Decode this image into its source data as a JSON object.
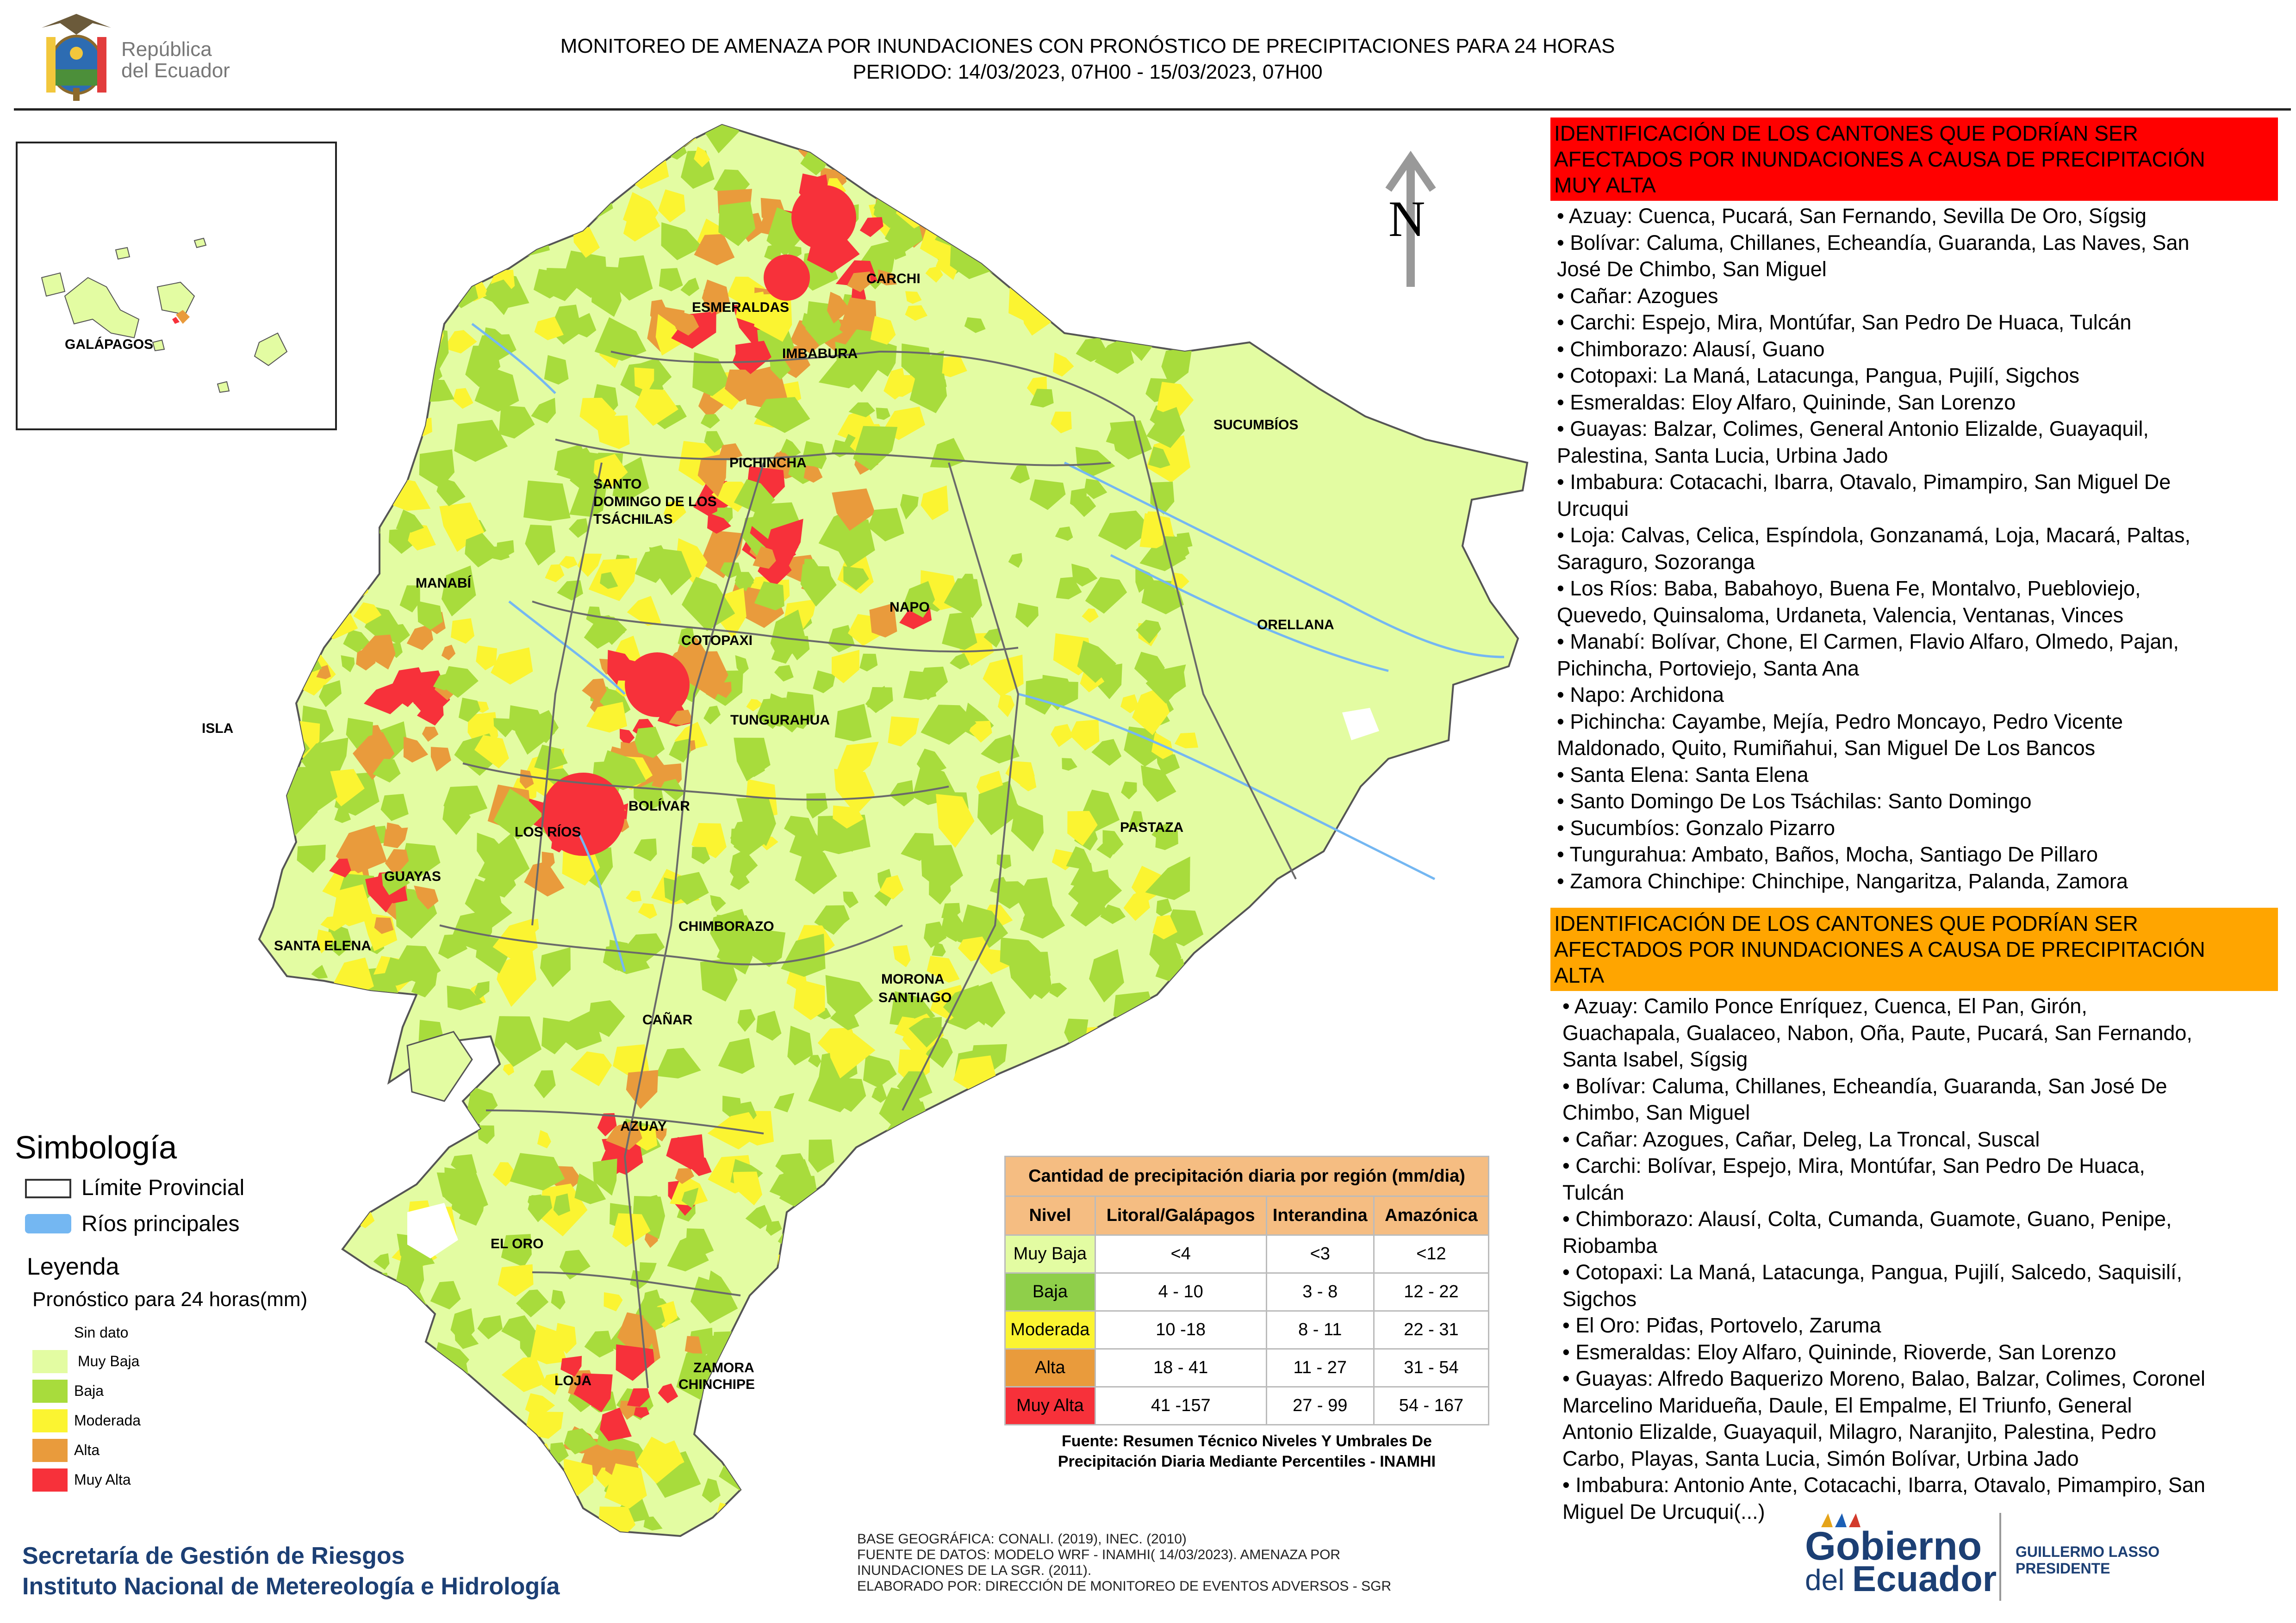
{
  "header": {
    "title_line1": "MONITOREO DE AMENAZA POR INUNDACIONES  CON PRONÓSTICO DE  PRECIPITACIONES PARA 24 HORAS",
    "title_line2": "PERIODO: 14/03/2023, 07H00 - 15/03/2023, 07H00",
    "logo_line1": "República",
    "logo_line2": "del Ecuador"
  },
  "map": {
    "north_label": "N",
    "inset_label": "GALÁPAGOS",
    "provinces": [
      "CARCHI",
      "ESMERALDAS",
      "IMBABURA",
      "SUCUMBÍOS",
      "PICHINCHA",
      "SANTO",
      "DOMINGO DE LOS",
      "TSÁCHILAS",
      "MANABÍ",
      "NAPO",
      "ORELLANA",
      "COTOPAXI",
      "ISLA",
      "TUNGURAHUA",
      "BOLÍVAR",
      "LOS RÍOS",
      "PASTAZA",
      "GUAYAS",
      "SANTA ELENA",
      "CHIMBORAZO",
      "MORONA",
      "SANTIAGO",
      "CAÑAR",
      "AZUAY",
      "EL ORO",
      "ZAMORA",
      "CHINCHIPE",
      "LOJA"
    ]
  },
  "colors": {
    "muy_baja": "#e3fca2",
    "baja": "#a8dc3c",
    "moderada": "#fbf431",
    "alta": "#e99b3c",
    "muy_alta": "#f7313a",
    "header_muy_alta": "#ff0000",
    "header_alta": "#ffa500",
    "rivers": "#74b7f2",
    "table_header": "#f5bd82"
  },
  "legend": {
    "simbologia": "Simbología",
    "limite": "Límite Provincial",
    "rios": "Ríos principales",
    "leyenda": "Leyenda",
    "pronostico": "Pronóstico para 24 horas(mm)",
    "items": [
      "Sin dato",
      "Muy Baja",
      "Baja",
      "Moderada",
      "Alta",
      "Muy Alta"
    ]
  },
  "table": {
    "title": "Cantidad de precipitación diaria por región (mm/dia)",
    "headers": [
      "Nivel",
      "Litoral/Galápagos",
      "Interandina",
      "Amazónica"
    ],
    "rows": [
      [
        "Muy Baja",
        "<4",
        "<3",
        "<12"
      ],
      [
        "Baja",
        "4 - 10",
        "3 - 8",
        "12 - 22"
      ],
      [
        "Moderada",
        "10 -18",
        "8 - 11",
        "22 - 31"
      ],
      [
        "Alta",
        "18 - 41",
        "11 - 27",
        "31 - 54"
      ],
      [
        "Muy Alta",
        "41 -157",
        "27 - 99",
        "54 - 167"
      ]
    ],
    "source_line1": "Fuente: Resumen Técnico Niveles Y Umbrales De",
    "source_line2": "Precipitación Diaria Mediante Percentiles - INAMHI"
  },
  "muy_alta": {
    "header": [
      "IDENTIFICACIÓN DE LOS CANTONES QUE PODRÍAN SER",
      "AFECTADOS POR INUNDACIONES  A CAUSA DE PRECIPITACIÓN",
      "MUY ALTA"
    ],
    "lines": [
      "• Azuay: Cuenca, Pucará, San Fernando, Sevilla De Oro, Sígsig",
      "• Bolívar: Caluma, Chillanes, Echeandía, Guaranda, Las Naves, San",
      "José De Chimbo, San Miguel",
      "• Cañar: Azogues",
      "• Carchi: Espejo, Mira, Montúfar, San Pedro De Huaca, Tulcán",
      "• Chimborazo: Alausí, Guano",
      "• Cotopaxi: La Maná, Latacunga, Pangua, Pujilí, Sigchos",
      "• Esmeraldas: Eloy Alfaro, Quininde, San Lorenzo",
      "• Guayas: Balzar, Colimes, General Antonio Elizalde, Guayaquil,",
      "Palestina, Santa Lucia, Urbina Jado",
      "• Imbabura: Cotacachi, Ibarra, Otavalo, Pimampiro, San Miguel De",
      "Urcuqui",
      "• Loja: Calvas, Celica, Espíndola, Gonzanamá, Loja, Macará, Paltas,",
      "Saraguro, Sozoranga",
      "• Los Ríos: Baba, Babahoyo, Buena Fe, Montalvo, Puebloviejo,",
      "Quevedo, Quinsaloma, Urdaneta, Valencia, Ventanas, Vinces",
      "• Manabí: Bolívar, Chone, El Carmen, Flavio Alfaro, Olmedo, Pajan,",
      "Pichincha, Portoviejo, Santa Ana",
      "• Napo: Archidona",
      "• Pichincha: Cayambe, Mejía, Pedro Moncayo, Pedro Vicente",
      "Maldonado, Quito, Rumiñahui, San Miguel De Los Bancos",
      "• Santa Elena: Santa Elena",
      "• Santo Domingo De Los Tsáchilas: Santo Domingo",
      "• Sucumbíos: Gonzalo Pizarro",
      "• Tungurahua: Ambato, Baños, Mocha, Santiago De Pillaro",
      "• Zamora Chinchipe: Chinchipe, Nangaritza, Palanda, Zamora"
    ]
  },
  "alta": {
    "header": [
      "IDENTIFICACIÓN DE LOS CANTONES QUE  PODRÍAN SER",
      "AFECTADOS POR INUNDACIONES  A CAUSA DE PRECIPITACIÓN",
      "ALTA"
    ],
    "lines": [
      "• Azuay: Camilo Ponce Enríquez, Cuenca, El Pan, Girón,",
      "Guachapala, Gualaceo, Nabon, Oña, Paute, Pucará, San Fernando,",
      "Santa Isabel, Sígsig",
      "• Bolívar: Caluma, Chillanes, Echeandía, Guaranda, San José De",
      "Chimbo, San Miguel",
      "• Cañar: Azogues, Cañar, Deleg, La Troncal, Suscal",
      "• Carchi: Bolívar, Espejo, Mira, Montúfar, San Pedro De Huaca,",
      "Tulcán",
      "• Chimborazo: Alausí, Colta, Cumanda, Guamote, Guano, Penipe,",
      "Riobamba",
      "• Cotopaxi: La Maná, Latacunga, Pangua, Pujilí, Salcedo, Saquisilí,",
      "Sigchos",
      "• El Oro: Piđas, Portovelo, Zaruma",
      "• Esmeraldas: Eloy Alfaro, Quininde, Rioverde, San Lorenzo",
      "• Guayas: Alfredo Baquerizo Moreno, Balao, Balzar, Colimes, Coronel",
      "Marcelino Maridueña, Daule, El Empalme, El Triunfo, General",
      "Antonio Elizalde, Guayaquil, Milagro, Naranjito, Palestina, Pedro",
      "Carbo, Playas, Santa Lucia, Simón Bolívar, Urbina Jado",
      "• Imbabura: Antonio Ante, Cotacachi, Ibarra, Otavalo, Pimampiro, San",
      "Miguel De Urcuqui(...)"
    ]
  },
  "footer": {
    "org1": "Secretaría de Gestión de Riesgos",
    "org2": "Instituto Nacional de Metereología e Hidrología",
    "source_lines": [
      "BASE GEOGRÁFICA: CONALI. (2019), INEC. (2010)",
      "FUENTE DE DATOS: MODELO WRF - INAMHI( 14/03/2023).  AMENAZA POR",
      "INUNDACIONES DE LA SGR. (2011).",
      "ELABORADO POR: DIRECCIÓN DE MONITOREO DE EVENTOS ADVERSOS - SGR"
    ],
    "gob1": "Gobierno",
    "gob2": "del",
    "gob3": "Ecuador",
    "pres1": "GUILLERMO LASSO",
    "pres2": "PRESIDENTE"
  }
}
